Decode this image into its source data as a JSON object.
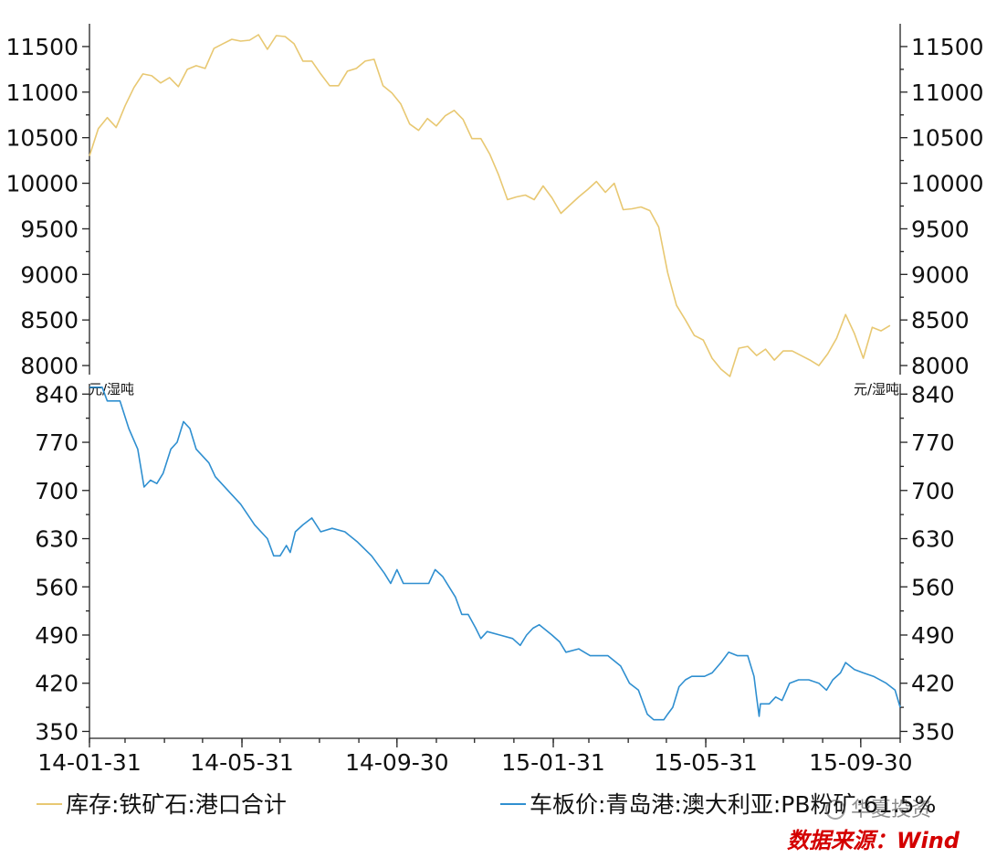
{
  "chart_data": [
    {
      "type": "line",
      "title": "",
      "xlabel": "",
      "ylabel": "",
      "ylim": [
        7800,
        11750
      ],
      "yticks": [
        8000,
        8500,
        9000,
        9500,
        10000,
        10500,
        11000,
        11500
      ],
      "x_range": [
        "2014-01-31",
        "2015-10-31"
      ],
      "grid": false,
      "series": [
        {
          "name": "库存:铁矿石:港口合计",
          "color": "#e8c872",
          "points": [
            [
              "2014-01-31",
              10300
            ],
            [
              "2014-02-07",
              10600
            ],
            [
              "2014-02-14",
              10720
            ],
            [
              "2014-02-21",
              10610
            ],
            [
              "2014-02-28",
              10850
            ],
            [
              "2014-03-07",
              11050
            ],
            [
              "2014-03-14",
              11200
            ],
            [
              "2014-03-21",
              11180
            ],
            [
              "2014-03-28",
              11100
            ],
            [
              "2014-04-04",
              11160
            ],
            [
              "2014-04-11",
              11060
            ],
            [
              "2014-04-18",
              11250
            ],
            [
              "2014-04-25",
              11290
            ],
            [
              "2014-05-02",
              11260
            ],
            [
              "2014-05-09",
              11480
            ],
            [
              "2014-05-16",
              11530
            ],
            [
              "2014-05-23",
              11580
            ],
            [
              "2014-05-30",
              11560
            ],
            [
              "2014-06-06",
              11570
            ],
            [
              "2014-06-13",
              11630
            ],
            [
              "2014-06-20",
              11470
            ],
            [
              "2014-06-27",
              11620
            ],
            [
              "2014-07-04",
              11610
            ],
            [
              "2014-07-11",
              11530
            ],
            [
              "2014-07-18",
              11340
            ],
            [
              "2014-07-25",
              11340
            ],
            [
              "2014-08-01",
              11200
            ],
            [
              "2014-08-08",
              11070
            ],
            [
              "2014-08-15",
              11070
            ],
            [
              "2014-08-22",
              11230
            ],
            [
              "2014-08-29",
              11260
            ],
            [
              "2014-09-05",
              11340
            ],
            [
              "2014-09-12",
              11360
            ],
            [
              "2014-09-19",
              11070
            ],
            [
              "2014-09-26",
              10990
            ],
            [
              "2014-10-03",
              10870
            ],
            [
              "2014-10-10",
              10650
            ],
            [
              "2014-10-17",
              10580
            ],
            [
              "2014-10-24",
              10710
            ],
            [
              "2014-10-31",
              10630
            ],
            [
              "2014-11-07",
              10740
            ],
            [
              "2014-11-14",
              10800
            ],
            [
              "2014-11-21",
              10700
            ],
            [
              "2014-11-28",
              10490
            ],
            [
              "2014-12-05",
              10490
            ],
            [
              "2014-12-12",
              10320
            ],
            [
              "2014-12-19",
              10090
            ],
            [
              "2014-12-26",
              9820
            ],
            [
              "2015-01-02",
              9850
            ],
            [
              "2015-01-09",
              9870
            ],
            [
              "2015-01-16",
              9820
            ],
            [
              "2015-01-23",
              9970
            ],
            [
              "2015-01-30",
              9840
            ],
            [
              "2015-02-06",
              9670
            ],
            [
              "2015-02-13",
              9760
            ],
            [
              "2015-02-20",
              9850
            ],
            [
              "2015-02-27",
              9930
            ],
            [
              "2015-03-06",
              10020
            ],
            [
              "2015-03-13",
              9900
            ],
            [
              "2015-03-20",
              10000
            ],
            [
              "2015-03-27",
              9710
            ],
            [
              "2015-04-03",
              9720
            ],
            [
              "2015-04-10",
              9740
            ],
            [
              "2015-04-17",
              9700
            ],
            [
              "2015-04-24",
              9520
            ],
            [
              "2015-05-01",
              9020
            ],
            [
              "2015-05-08",
              8660
            ],
            [
              "2015-05-15",
              8500
            ],
            [
              "2015-05-22",
              8330
            ],
            [
              "2015-05-29",
              8280
            ],
            [
              "2015-06-05",
              8080
            ],
            [
              "2015-06-12",
              7960
            ],
            [
              "2015-06-19",
              7880
            ],
            [
              "2015-06-26",
              8190
            ],
            [
              "2015-07-03",
              8210
            ],
            [
              "2015-07-10",
              8110
            ],
            [
              "2015-07-17",
              8180
            ],
            [
              "2015-07-24",
              8060
            ],
            [
              "2015-07-31",
              8160
            ],
            [
              "2015-08-07",
              8160
            ],
            [
              "2015-08-14",
              8110
            ],
            [
              "2015-08-21",
              8060
            ],
            [
              "2015-08-28",
              8000
            ],
            [
              "2015-09-04",
              8130
            ],
            [
              "2015-09-11",
              8300
            ],
            [
              "2015-09-18",
              8560
            ],
            [
              "2015-09-25",
              8350
            ],
            [
              "2015-10-02",
              8080
            ],
            [
              "2015-10-09",
              8420
            ],
            [
              "2015-10-16",
              8380
            ],
            [
              "2015-10-23",
              8440
            ]
          ]
        }
      ]
    },
    {
      "type": "line",
      "title": "",
      "xlabel": "",
      "ylabel": "元/湿吨",
      "ylim": [
        340,
        855
      ],
      "yticks": [
        350,
        420,
        490,
        560,
        630,
        700,
        770,
        840
      ],
      "x_range": [
        "2014-01-31",
        "2015-10-31"
      ],
      "xticks": [
        "14-01-31",
        "14-05-31",
        "14-09-30",
        "15-01-31",
        "15-05-31",
        "15-09-30"
      ],
      "grid": false,
      "series": [
        {
          "name": "车板价:青岛港:澳大利亚:PB粉矿:61.5%",
          "color": "#2f8fd0",
          "points": [
            [
              "2014-01-31",
              850
            ],
            [
              "2014-02-10",
              850
            ],
            [
              "2014-02-14",
              830
            ],
            [
              "2014-02-24",
              830
            ],
            [
              "2014-03-03",
              790
            ],
            [
              "2014-03-10",
              760
            ],
            [
              "2014-03-15",
              705
            ],
            [
              "2014-03-20",
              715
            ],
            [
              "2014-03-25",
              710
            ],
            [
              "2014-03-30",
              725
            ],
            [
              "2014-04-05",
              760
            ],
            [
              "2014-04-10",
              770
            ],
            [
              "2014-04-15",
              800
            ],
            [
              "2014-04-20",
              790
            ],
            [
              "2014-04-25",
              760
            ],
            [
              "2014-05-05",
              740
            ],
            [
              "2014-05-10",
              720
            ],
            [
              "2014-05-20",
              700
            ],
            [
              "2014-05-30",
              680
            ],
            [
              "2014-06-10",
              650
            ],
            [
              "2014-06-20",
              630
            ],
            [
              "2014-06-25",
              605
            ],
            [
              "2014-06-30",
              605
            ],
            [
              "2014-07-05",
              620
            ],
            [
              "2014-07-08",
              610
            ],
            [
              "2014-07-12",
              640
            ],
            [
              "2014-07-18",
              650
            ],
            [
              "2014-07-25",
              660
            ],
            [
              "2014-08-01",
              640
            ],
            [
              "2014-08-10",
              645
            ],
            [
              "2014-08-20",
              640
            ],
            [
              "2014-08-30",
              625
            ],
            [
              "2014-09-10",
              605
            ],
            [
              "2014-09-20",
              580
            ],
            [
              "2014-09-25",
              565
            ],
            [
              "2014-09-30",
              585
            ],
            [
              "2014-10-05",
              565
            ],
            [
              "2014-10-15",
              565
            ],
            [
              "2014-10-25",
              565
            ],
            [
              "2014-10-30",
              585
            ],
            [
              "2014-11-05",
              575
            ],
            [
              "2014-11-10",
              560
            ],
            [
              "2014-11-15",
              545
            ],
            [
              "2014-11-20",
              520
            ],
            [
              "2014-11-25",
              520
            ],
            [
              "2014-12-01",
              500
            ],
            [
              "2014-12-05",
              485
            ],
            [
              "2014-12-10",
              495
            ],
            [
              "2014-12-20",
              490
            ],
            [
              "2014-12-30",
              485
            ],
            [
              "2015-01-05",
              475
            ],
            [
              "2015-01-10",
              490
            ],
            [
              "2015-01-15",
              500
            ],
            [
              "2015-01-20",
              505
            ],
            [
              "2015-01-30",
              490
            ],
            [
              "2015-02-05",
              480
            ],
            [
              "2015-02-10",
              465
            ],
            [
              "2015-02-20",
              470
            ],
            [
              "2015-03-01",
              460
            ],
            [
              "2015-03-15",
              460
            ],
            [
              "2015-03-25",
              445
            ],
            [
              "2015-04-01",
              420
            ],
            [
              "2015-04-08",
              410
            ],
            [
              "2015-04-15",
              375
            ],
            [
              "2015-04-20",
              367
            ],
            [
              "2015-04-28",
              367
            ],
            [
              "2015-05-01",
              375
            ],
            [
              "2015-05-05",
              385
            ],
            [
              "2015-05-10",
              415
            ],
            [
              "2015-05-15",
              425
            ],
            [
              "2015-05-20",
              430
            ],
            [
              "2015-05-30",
              430
            ],
            [
              "2015-06-05",
              435
            ],
            [
              "2015-06-12",
              450
            ],
            [
              "2015-06-18",
              465
            ],
            [
              "2015-06-25",
              460
            ],
            [
              "2015-07-03",
              460
            ],
            [
              "2015-07-08",
              430
            ],
            [
              "2015-07-10",
              400
            ],
            [
              "2015-07-12",
              372
            ],
            [
              "2015-07-13",
              390
            ],
            [
              "2015-07-20",
              390
            ],
            [
              "2015-07-25",
              400
            ],
            [
              "2015-07-30",
              395
            ],
            [
              "2015-08-05",
              420
            ],
            [
              "2015-08-12",
              425
            ],
            [
              "2015-08-20",
              425
            ],
            [
              "2015-08-28",
              420
            ],
            [
              "2015-09-03",
              410
            ],
            [
              "2015-09-08",
              425
            ],
            [
              "2015-09-14",
              435
            ],
            [
              "2015-09-18",
              450
            ],
            [
              "2015-09-25",
              440
            ],
            [
              "2015-10-02",
              435
            ],
            [
              "2015-10-10",
              430
            ],
            [
              "2015-10-20",
              420
            ],
            [
              "2015-10-27",
              410
            ],
            [
              "2015-10-31",
              385
            ]
          ]
        }
      ]
    }
  ],
  "legend": [
    {
      "label": "库存:铁矿石:港口合计",
      "color": "#e8c872"
    },
    {
      "label": "车板价:青岛港:澳大利亚:PB粉矿:61.5%",
      "color": "#2f8fd0"
    }
  ],
  "watermark": {
    "account": "华夏投资",
    "source": "数据来源：Wind"
  }
}
